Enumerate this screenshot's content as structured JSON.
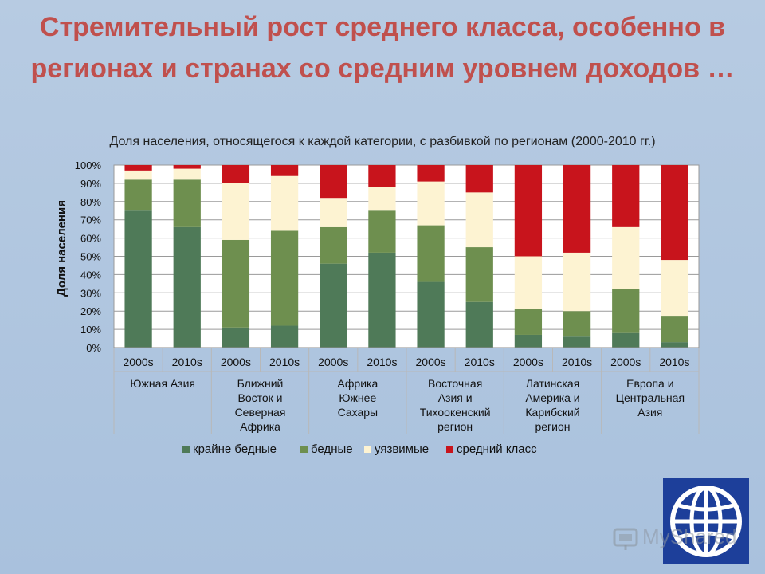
{
  "title": "Стремительный рост среднего класса, особенно в регионах и странах со средним уровнем доходов …",
  "subtitle": "Доля населения, относящегося к каждой категории, с разбивкой по регионам (2000-2010 гг.)",
  "watermark": "MyShared",
  "colors": {
    "extreme_poor": "#4f7a58",
    "poor": "#6e8f4f",
    "vulnerable": "#fdf3d2",
    "middle_class": "#c8141c",
    "title": "#c0504d"
  },
  "chart_data": {
    "type": "bar",
    "stacked": true,
    "ylabel": "Доля населения",
    "ylim": [
      0,
      100
    ],
    "yticks": [
      "0%",
      "10%",
      "20%",
      "30%",
      "40%",
      "50%",
      "60%",
      "70%",
      "80%",
      "90%",
      "100%"
    ],
    "grid": true,
    "legend_position": "bottom",
    "groups": [
      {
        "label": [
          "Южная Азия"
        ],
        "periods": [
          "2000s",
          "2010s"
        ]
      },
      {
        "label": [
          "Ближний",
          "Восток и",
          "Северная",
          "Африка"
        ],
        "periods": [
          "2000s",
          "2010s"
        ]
      },
      {
        "label": [
          "Африка",
          "Южнее",
          "Сахары"
        ],
        "periods": [
          "2000s",
          "2010s"
        ]
      },
      {
        "label": [
          "Восточная",
          "Азия и",
          "Тихоокенский",
          "регион"
        ],
        "periods": [
          "2000s",
          "2010s"
        ]
      },
      {
        "label": [
          "Латинская",
          "Америка и",
          "Карибский",
          "регион"
        ],
        "periods": [
          "2000s",
          "2010s"
        ]
      },
      {
        "label": [
          "Европа и",
          "Центральная",
          "Азия"
        ],
        "periods": [
          "2000s",
          "2010s"
        ]
      }
    ],
    "series": [
      {
        "name": "крайне бедные",
        "color": "#4f7a58",
        "values": [
          75,
          66,
          11,
          12,
          46,
          52,
          36,
          25,
          7,
          6,
          8,
          3
        ]
      },
      {
        "name": "бедные",
        "color": "#6e8f4f",
        "values": [
          17,
          26,
          48,
          52,
          20,
          23,
          31,
          30,
          14,
          14,
          24,
          14
        ]
      },
      {
        "name": "уязвимые",
        "color": "#fdf3d2",
        "values": [
          5,
          6,
          31,
          30,
          16,
          13,
          24,
          30,
          29,
          32,
          34,
          31
        ]
      },
      {
        "name": "средний класс",
        "color": "#c8141c",
        "values": [
          3,
          2,
          10,
          6,
          18,
          12,
          9,
          15,
          50,
          48,
          34,
          52
        ]
      }
    ]
  }
}
